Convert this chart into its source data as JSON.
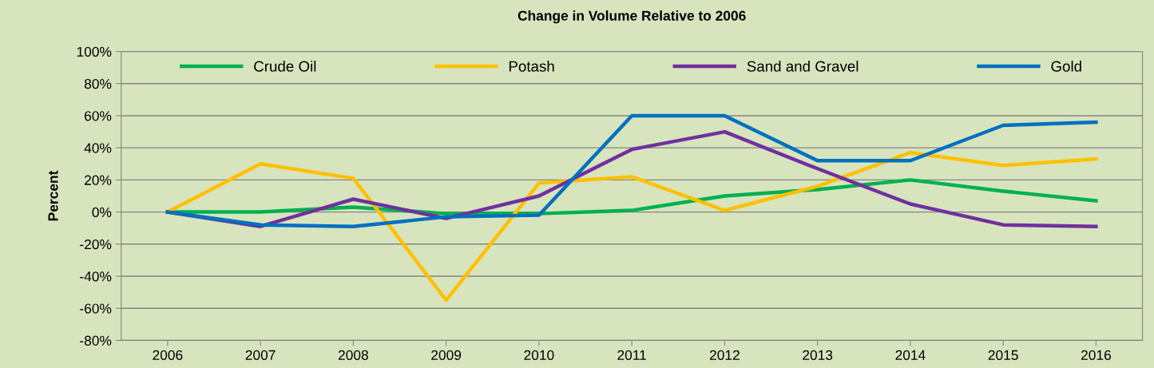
{
  "chart_data": {
    "type": "line",
    "title": "Change in Volume Relative to 2006",
    "ylabel": "Percent",
    "categories": [
      "2006",
      "2007",
      "2008",
      "2009",
      "2010",
      "2011",
      "2012",
      "2013",
      "2014",
      "2015",
      "2016"
    ],
    "series": [
      {
        "name": "Crude Oil",
        "color": "#00b050",
        "values": [
          0,
          0,
          3,
          -1,
          -1,
          1,
          10,
          14,
          20,
          13,
          7
        ]
      },
      {
        "name": "Potash",
        "color": "#ffc000",
        "values": [
          0,
          30,
          21,
          -55,
          18,
          22,
          1,
          16,
          37,
          29,
          33
        ]
      },
      {
        "name": "Sand and Gravel",
        "color": "#7030a0",
        "values": [
          0,
          -9,
          8,
          -4,
          10,
          39,
          50,
          27,
          5,
          -8,
          -9
        ]
      },
      {
        "name": "Gold",
        "color": "#0070c0",
        "values": [
          0,
          -8,
          -9,
          -3,
          -2,
          60,
          60,
          32,
          32,
          54,
          56
        ]
      }
    ],
    "ylim": [
      -80,
      100
    ],
    "yticks": [
      {
        "value": -80,
        "label": "-80%"
      },
      {
        "value": -60,
        "label": "-60%"
      },
      {
        "value": -40,
        "label": "-40%"
      },
      {
        "value": -20,
        "label": "-20%"
      },
      {
        "value": 0,
        "label": "0%"
      },
      {
        "value": 20,
        "label": "20%"
      },
      {
        "value": 40,
        "label": "40%"
      },
      {
        "value": 60,
        "label": "60%"
      },
      {
        "value": 80,
        "label": "80%"
      },
      {
        "value": 100,
        "label": "100%"
      }
    ],
    "grid": "y",
    "legend": "top",
    "marker": "none",
    "line_style": "solid"
  }
}
